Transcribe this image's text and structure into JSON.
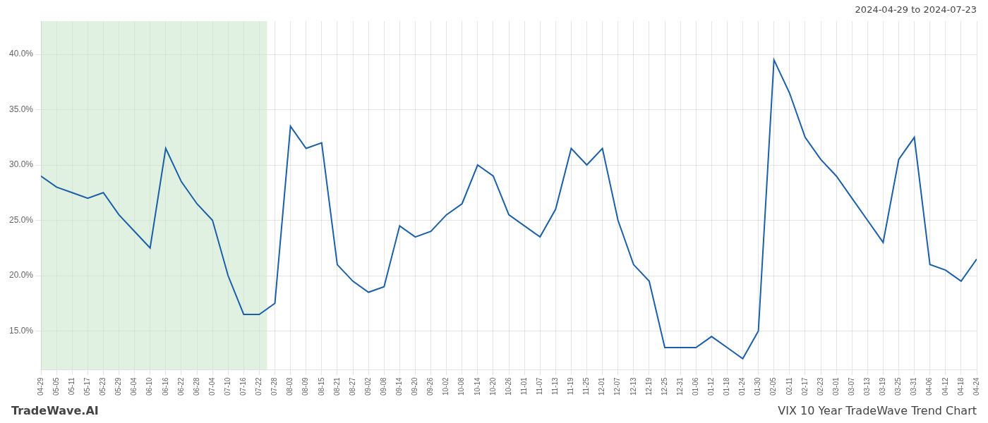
{
  "chart_data": {
    "type": "line",
    "annotations": [
      "2024-04-29 to 2024-07-23",
      "TradeWave.AI",
      "VIX 10 Year TradeWave Trend Chart"
    ],
    "categories": [
      "04-29",
      "05-05",
      "05-11",
      "05-17",
      "05-23",
      "05-29",
      "06-04",
      "06-10",
      "06-16",
      "06-22",
      "06-28",
      "07-04",
      "07-10",
      "07-16",
      "07-22",
      "07-28",
      "08-03",
      "08-09",
      "08-15",
      "08-21",
      "08-27",
      "09-02",
      "09-08",
      "09-14",
      "09-20",
      "09-26",
      "10-02",
      "10-08",
      "10-14",
      "10-20",
      "10-26",
      "11-01",
      "11-07",
      "11-13",
      "11-19",
      "11-25",
      "12-01",
      "12-07",
      "12-13",
      "12-19",
      "12-25",
      "12-31",
      "01-06",
      "01-12",
      "01-18",
      "01-24",
      "01-30",
      "02-05",
      "02-11",
      "02-17",
      "02-23",
      "03-01",
      "03-07",
      "03-13",
      "03-19",
      "03-25",
      "03-31",
      "04-06",
      "04-12",
      "04-18",
      "04-24"
    ],
    "values": [
      29.0,
      28.0,
      27.5,
      27.0,
      27.5,
      25.5,
      24.0,
      22.5,
      31.5,
      28.5,
      26.5,
      25.0,
      20.0,
      16.5,
      16.5,
      17.5,
      33.5,
      31.5,
      32.0,
      21.0,
      19.5,
      18.5,
      19.0,
      24.5,
      23.5,
      24.0,
      25.5,
      26.5,
      30.0,
      29.0,
      25.5,
      24.5,
      23.5,
      26.0,
      31.5,
      30.0,
      31.5,
      25.0,
      21.0,
      19.5,
      13.5,
      13.5,
      13.5,
      14.5,
      13.5,
      12.5,
      15.0,
      39.5,
      36.5,
      32.5,
      30.5,
      29.0,
      27.0,
      25.0,
      23.0,
      30.5,
      32.5,
      21.0,
      20.5,
      19.5,
      21.5
    ],
    "color": "#1a5fa8",
    "marker": "none",
    "ylim": [
      11.5,
      43.0
    ],
    "yticks": [
      {
        "value": 15.0,
        "label": "15.0%"
      },
      {
        "value": 20.0,
        "label": "20.0%"
      },
      {
        "value": 25.0,
        "label": "25.0%"
      },
      {
        "value": 30.0,
        "label": "30.0%"
      },
      {
        "value": 35.0,
        "label": "35.0%"
      },
      {
        "value": 40.0,
        "label": "40.0%"
      }
    ],
    "highlight": {
      "start": "04-29",
      "end": "07-22",
      "color": "#c8e6c8"
    },
    "grid": true,
    "legend": false
  }
}
